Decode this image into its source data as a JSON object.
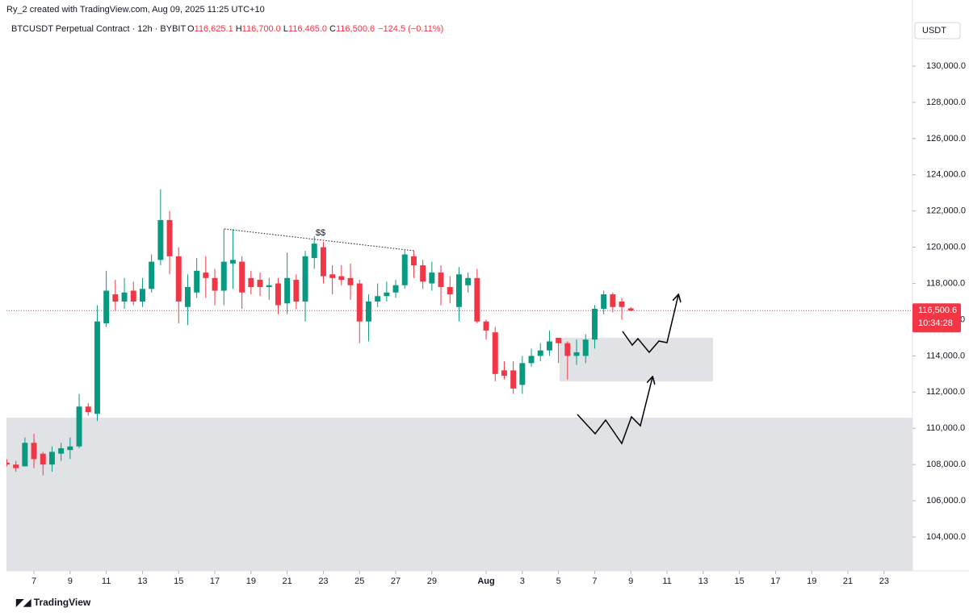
{
  "header": {
    "credit": "Ry_2 created with TradingView.com, Aug 09, 2025 11:25 UTC+10",
    "symbol": "BTCUSDT Perpetual Contract · 12h · BYBIT",
    "ohlc": [
      {
        "label": "O",
        "value": "116,625.1"
      },
      {
        "label": "H",
        "value": "116,700.0"
      },
      {
        "label": "L",
        "value": "116,465.0"
      },
      {
        "label": "C",
        "value": "116,500.6"
      }
    ],
    "change": "−124.5 (−0.11%)",
    "currency": "USDT",
    "brand": "TradingView"
  },
  "chart_data": {
    "type": "candlestick",
    "x": [
      5.5,
      6,
      6.5,
      7,
      7.5,
      8,
      8.5,
      9,
      9.5,
      10,
      10.5,
      11,
      11.5,
      12,
      12.5,
      13,
      13.5,
      14,
      14.5,
      15,
      15.5,
      16,
      16.5,
      17,
      17.5,
      18,
      18.5,
      19,
      19.5,
      20,
      20.5,
      21,
      21.5,
      22,
      22.5,
      23,
      23.5,
      24,
      24.5,
      25,
      25.5,
      26,
      26.5,
      27,
      27.5,
      28,
      28.5,
      29,
      29.5,
      30,
      30.5,
      31,
      31.5,
      32,
      32.5,
      33,
      33.5,
      34,
      34.5,
      35,
      35.5,
      36,
      36.5,
      37,
      37.5,
      38,
      38.5,
      39,
      39.5,
      40
    ],
    "open": [
      108100,
      108000,
      107900,
      109200,
      108600,
      108000,
      108600,
      108800,
      109000,
      111200,
      110800,
      115800,
      117400,
      117000,
      117600,
      117000,
      117700,
      119300,
      121500,
      119500,
      116700,
      117500,
      118600,
      118300,
      117600,
      119100,
      119200,
      118300,
      118200,
      117800,
      118000,
      116900,
      118200,
      117000,
      119400,
      120000,
      118500,
      118400,
      118300,
      118000,
      115900,
      117000,
      117300,
      117500,
      117900,
      119500,
      119000,
      118000,
      118600,
      117800,
      116700,
      117900,
      118300,
      115900,
      115300,
      113200,
      113200,
      112400,
      113600,
      114000,
      114300,
      115000,
      114700,
      114000,
      114000,
      114900,
      116600,
      117400,
      117000,
      116625.1
    ],
    "high": [
      108300,
      108200,
      109500,
      109700,
      108700,
      109000,
      109200,
      109500,
      111900,
      111400,
      116800,
      118700,
      118200,
      118300,
      118100,
      118300,
      119600,
      123200,
      122000,
      120000,
      118500,
      119400,
      119500,
      118800,
      121000,
      121000,
      119500,
      118700,
      118600,
      118300,
      118300,
      119700,
      118500,
      119800,
      120600,
      120300,
      119000,
      119000,
      119100,
      118200,
      117400,
      118000,
      118100,
      118200,
      119900,
      119800,
      119300,
      119200,
      119000,
      118400,
      118900,
      118600,
      118800,
      116000,
      115600,
      113700,
      113700,
      114000,
      114400,
      114700,
      115400,
      115000,
      114800,
      114900,
      115200,
      116800,
      117600,
      117500,
      117200,
      116700
    ],
    "low": [
      107900,
      107600,
      107900,
      107800,
      107400,
      107600,
      108200,
      108300,
      108900,
      110700,
      110400,
      115600,
      116500,
      116600,
      116800,
      116700,
      117500,
      119000,
      118500,
      115800,
      115700,
      117200,
      117200,
      116800,
      116800,
      117700,
      116600,
      117400,
      117300,
      117100,
      116300,
      116300,
      116600,
      115900,
      118800,
      118000,
      117400,
      117900,
      117100,
      114700,
      114800,
      116700,
      117000,
      117200,
      117700,
      118300,
      117700,
      117600,
      116800,
      116900,
      115900,
      117500,
      115800,
      114900,
      112600,
      112700,
      111900,
      111900,
      113400,
      113700,
      114000,
      113600,
      112700,
      113500,
      113600,
      114400,
      116300,
      116400,
      116000,
      116465
    ],
    "close": [
      108000,
      107800,
      109200,
      108300,
      108000,
      108700,
      108900,
      109000,
      111200,
      110900,
      115900,
      117600,
      117000,
      117500,
      117000,
      117700,
      119200,
      121500,
      119500,
      117000,
      117800,
      118700,
      118300,
      117600,
      119200,
      119300,
      117500,
      117800,
      117800,
      117900,
      116800,
      118300,
      117000,
      119500,
      120200,
      118400,
      118300,
      118200,
      117900,
      115900,
      117000,
      117300,
      117500,
      117900,
      119600,
      119000,
      118100,
      118600,
      117800,
      117400,
      118500,
      118300,
      115900,
      115400,
      113000,
      112900,
      112200,
      113600,
      114000,
      114300,
      114800,
      114700,
      114000,
      114200,
      114900,
      116600,
      117400,
      116700,
      116700,
      116500.6
    ],
    "up_color": "#089981",
    "down_color": "#f23645",
    "xlim": [
      5.48,
      55.57
    ],
    "xticks": [
      7,
      9,
      11,
      13,
      15,
      17,
      19,
      21,
      23,
      25,
      27,
      29,
      {
        "value": 32,
        "label": "Aug"
      },
      {
        "value": 34,
        "label": "3"
      },
      {
        "value": 36,
        "label": "5"
      },
      {
        "value": 38,
        "label": "7"
      },
      {
        "value": 40,
        "label": "9"
      },
      {
        "value": 42,
        "label": "11"
      },
      {
        "value": 44,
        "label": "13"
      },
      {
        "value": 46,
        "label": "15"
      },
      {
        "value": 48,
        "label": "17"
      },
      {
        "value": 50,
        "label": "19"
      },
      {
        "value": 52,
        "label": "21"
      },
      {
        "value": 54,
        "label": "23"
      }
    ],
    "ylim": [
      102130,
      132315
    ],
    "yticks": [
      {
        "value": 104000,
        "label": "104,000.0"
      },
      {
        "value": 106000,
        "label": "106,000.0"
      },
      {
        "value": 108000,
        "label": "108,000.0"
      },
      {
        "value": 110000,
        "label": "110,000.0"
      },
      {
        "value": 112000,
        "label": "112,000.0"
      },
      {
        "value": 114000,
        "label": "114,000.0"
      },
      {
        "value": 116000,
        "label": "116,000.0"
      },
      {
        "value": 118000,
        "label": "118,000.0"
      },
      {
        "value": 120000,
        "label": "120,000.0"
      },
      {
        "value": 122000,
        "label": "122,000.0"
      },
      {
        "value": 124000,
        "label": "124,000.0"
      },
      {
        "value": 126000,
        "label": "126,000.0"
      },
      {
        "value": 128000,
        "label": "128,000.0"
      },
      {
        "value": 130000,
        "label": "130,000.0"
      }
    ],
    "grid": false,
    "last_price": {
      "value": 116500.6,
      "label": "116,500.6",
      "countdown": "10:34:28"
    },
    "annotation": "$$"
  }
}
